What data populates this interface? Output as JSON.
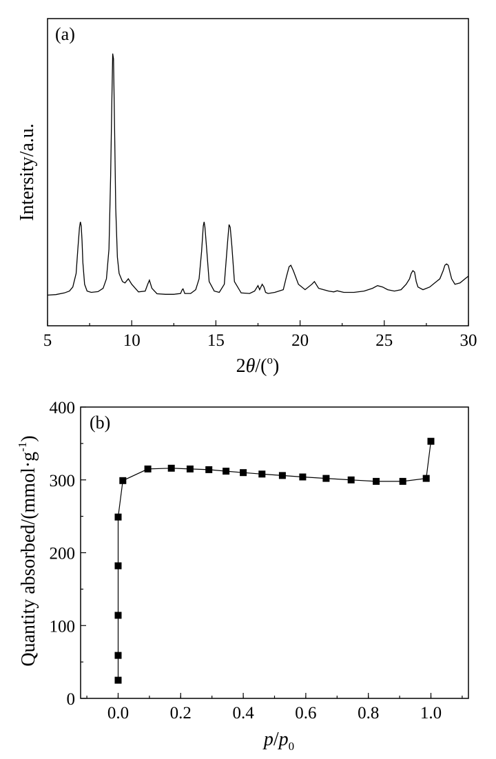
{
  "chart_data": [
    {
      "panel_label": "(a)",
      "type": "line",
      "xlabel_prefix": "2",
      "xlabel_theta": "θ",
      "xlabel_unit_open": "/(",
      "xlabel_unit_sup": "o",
      "xlabel_unit_close": ")",
      "ylabel": "Intersity/a.u.",
      "xlim": [
        5,
        30
      ],
      "ylim": [
        0,
        100
      ],
      "x_ticks": [
        5,
        10,
        15,
        20,
        25,
        30
      ],
      "x_tick_labels": [
        "5",
        "10",
        "15",
        "20",
        "25",
        "30"
      ],
      "y_ticks_shown": false,
      "series": [
        {
          "x": [
            5.0,
            5.5,
            6.0,
            6.3,
            6.5,
            6.7,
            6.8,
            6.9,
            6.95,
            7.0,
            7.05,
            7.1,
            7.2,
            7.35,
            7.6,
            8.0,
            8.3,
            8.5,
            8.65,
            8.75,
            8.82,
            8.87,
            8.92,
            8.98,
            9.05,
            9.15,
            9.25,
            9.35,
            9.45,
            9.6,
            9.8,
            10.0,
            10.4,
            10.8,
            10.95,
            11.05,
            11.2,
            11.5,
            12.0,
            12.5,
            12.9,
            13.0,
            13.05,
            13.15,
            13.5,
            13.8,
            14.0,
            14.15,
            14.25,
            14.3,
            14.35,
            14.45,
            14.6,
            14.9,
            15.2,
            15.5,
            15.7,
            15.78,
            15.85,
            15.95,
            16.1,
            16.5,
            17.0,
            17.3,
            17.5,
            17.6,
            17.75,
            17.85,
            17.95,
            18.1,
            18.5,
            19.0,
            19.2,
            19.35,
            19.45,
            19.6,
            19.9,
            20.3,
            20.7,
            20.85,
            21.1,
            21.4,
            21.7,
            22.0,
            22.2,
            22.6,
            23.2,
            23.8,
            24.3,
            24.6,
            24.9,
            25.2,
            25.6,
            26.0,
            26.3,
            26.5,
            26.6,
            26.7,
            26.8,
            26.9,
            27.0,
            27.3,
            27.7,
            28.0,
            28.3,
            28.5,
            28.6,
            28.7,
            28.8,
            28.9,
            29.0,
            29.2,
            29.5,
            29.8,
            30.0
          ],
          "y": [
            8.0,
            8.2,
            8.8,
            9.5,
            11.0,
            16.0,
            25.0,
            33.0,
            35.0,
            33.5,
            28.0,
            20.0,
            12.0,
            9.5,
            9.0,
            9.3,
            10.5,
            14.0,
            25.0,
            52.0,
            80.0,
            97.0,
            95.0,
            70.0,
            40.0,
            22.0,
            16.0,
            14.5,
            13.0,
            12.5,
            14.0,
            12.0,
            9.2,
            9.5,
            12.0,
            13.5,
            10.5,
            8.5,
            8.3,
            8.3,
            8.6,
            10.0,
            10.3,
            8.6,
            8.6,
            10.0,
            14.0,
            24.0,
            33.5,
            35.0,
            33.0,
            25.0,
            13.0,
            9.5,
            9.0,
            12.0,
            28.0,
            34.0,
            33.0,
            26.0,
            13.0,
            8.8,
            8.6,
            9.5,
            11.5,
            10.0,
            12.0,
            11.0,
            9.0,
            8.6,
            9.0,
            10.0,
            15.0,
            18.5,
            19.0,
            17.0,
            12.0,
            10.0,
            12.0,
            13.0,
            10.5,
            10.0,
            9.5,
            9.2,
            9.6,
            9.0,
            9.0,
            9.5,
            10.5,
            11.5,
            11.0,
            10.0,
            9.5,
            10.0,
            12.0,
            14.0,
            16.0,
            17.0,
            16.5,
            13.0,
            11.0,
            10.0,
            11.0,
            12.5,
            14.0,
            17.0,
            19.0,
            19.5,
            19.0,
            16.5,
            14.0,
            12.0,
            12.5,
            14.0,
            15.0
          ]
        }
      ]
    },
    {
      "panel_label": "(b)",
      "type": "line",
      "marker": "square",
      "xlabel_p": "p",
      "xlabel_slash": "/",
      "xlabel_p0": "p",
      "xlabel_p0_sub": "0",
      "ylabel_main": "Quantity absorbed/(mmol·g",
      "ylabel_sup": "-1",
      "ylabel_close": ")",
      "xlim": [
        -0.12,
        1.12
      ],
      "ylim": [
        0,
        400
      ],
      "x_ticks": [
        0.0,
        0.2,
        0.4,
        0.6,
        0.8,
        1.0
      ],
      "x_tick_labels": [
        "0.0",
        "0.2",
        "0.4",
        "0.6",
        "0.8",
        "1.0"
      ],
      "y_ticks": [
        0,
        100,
        200,
        300,
        400
      ],
      "y_tick_labels": [
        "0",
        "100",
        "200",
        "300",
        "400"
      ],
      "series": [
        {
          "x": [
            0.0,
            0.0,
            0.0,
            0.0,
            0.0,
            0.015,
            0.095,
            0.17,
            0.23,
            0.29,
            0.345,
            0.4,
            0.46,
            0.525,
            0.59,
            0.665,
            0.745,
            0.825,
            0.91,
            0.985,
            1.0
          ],
          "y": [
            25,
            59,
            114,
            182,
            249,
            299,
            315,
            316,
            315,
            314,
            312,
            310,
            308,
            306,
            304,
            302,
            300,
            298,
            298,
            302,
            353
          ]
        }
      ]
    }
  ]
}
